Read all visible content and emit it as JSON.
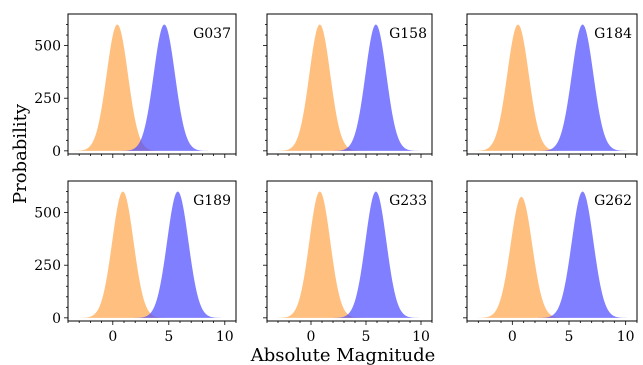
{
  "chart_data": {
    "type": "area",
    "xlabel": "Absolute Magnitude",
    "ylabel": "Probability",
    "xlim": [
      -4,
      11
    ],
    "ylim": [
      -15,
      650
    ],
    "x_ticks": [
      0,
      5,
      10
    ],
    "x_tick_labels": [
      "0",
      "5",
      "10"
    ],
    "y_ticks": [
      0,
      250,
      500
    ],
    "y_tick_labels": [
      "0",
      "250",
      "500"
    ],
    "series_colors": {
      "orange": "#ffa64d",
      "blue": "#4d4dff"
    },
    "panels": [
      {
        "label": "G037",
        "orange": {
          "center": 0.4,
          "sigma": 0.95,
          "peak": 600
        },
        "blue": {
          "center": 4.6,
          "sigma": 0.95,
          "peak": 600
        }
      },
      {
        "label": "G158",
        "orange": {
          "center": 0.8,
          "sigma": 0.95,
          "peak": 600
        },
        "blue": {
          "center": 5.9,
          "sigma": 0.95,
          "peak": 600
        }
      },
      {
        "label": "G184",
        "orange": {
          "center": 0.5,
          "sigma": 0.95,
          "peak": 600
        },
        "blue": {
          "center": 6.2,
          "sigma": 0.95,
          "peak": 600
        }
      },
      {
        "label": "G189",
        "orange": {
          "center": 0.9,
          "sigma": 0.95,
          "peak": 600
        },
        "blue": {
          "center": 5.8,
          "sigma": 0.95,
          "peak": 600
        }
      },
      {
        "label": "G233",
        "orange": {
          "center": 0.8,
          "sigma": 0.95,
          "peak": 600
        },
        "blue": {
          "center": 5.9,
          "sigma": 0.95,
          "peak": 600
        }
      },
      {
        "label": "G262",
        "orange": {
          "center": 0.8,
          "sigma": 0.95,
          "peak": 575
        },
        "blue": {
          "center": 6.2,
          "sigma": 0.95,
          "peak": 600
        }
      }
    ]
  }
}
